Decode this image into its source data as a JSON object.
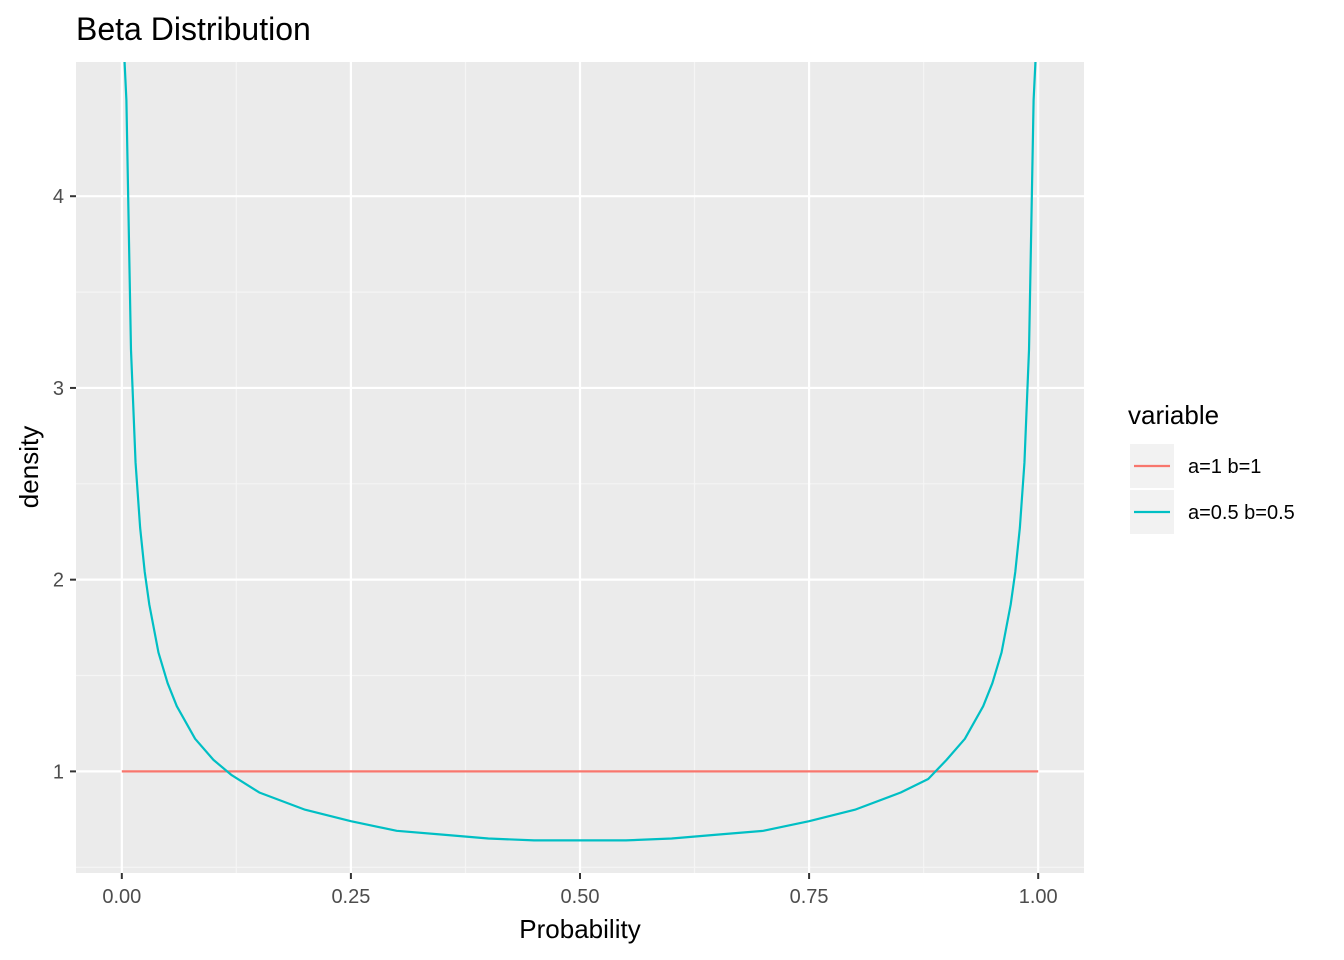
{
  "chart_data": {
    "type": "line",
    "title": "Beta Distribution",
    "xlabel": "Probability",
    "ylabel": "density",
    "xlim": [
      -0.05,
      1.05
    ],
    "ylim": [
      0.47,
      4.7
    ],
    "x_ticks": [
      {
        "value": 0,
        "label": "0.00"
      },
      {
        "value": 0.25,
        "label": "0.25"
      },
      {
        "value": 0.5,
        "label": "0.50"
      },
      {
        "value": 0.75,
        "label": "0.75"
      },
      {
        "value": 1,
        "label": "1.00"
      }
    ],
    "y_ticks": [
      {
        "value": 1,
        "label": "1"
      },
      {
        "value": 2,
        "label": "2"
      },
      {
        "value": 3,
        "label": "3"
      },
      {
        "value": 4,
        "label": "4"
      }
    ],
    "grid": true,
    "legend": {
      "title": "variable",
      "placement": "right"
    },
    "series": [
      {
        "name": "a=1 b=1",
        "color": "#F8766D",
        "x": [
          0,
          0.01,
          0.05,
          0.1,
          0.2,
          0.3,
          0.4,
          0.5,
          0.6,
          0.7,
          0.8,
          0.9,
          0.95,
          0.99,
          1
        ],
        "values": [
          1,
          1,
          1,
          1,
          1,
          1,
          1,
          1,
          1,
          1,
          1,
          1,
          1,
          1,
          1
        ]
      },
      {
        "name": "a=0.5 b=0.5",
        "color": "#00BFC4",
        "x": [
          0.0,
          0.005,
          0.01,
          0.015,
          0.02,
          0.025,
          0.03,
          0.04,
          0.05,
          0.06,
          0.08,
          0.1,
          0.12,
          0.15,
          0.2,
          0.25,
          0.3,
          0.35,
          0.4,
          0.45,
          0.5,
          0.55,
          0.6,
          0.65,
          0.7,
          0.75,
          0.8,
          0.85,
          0.88,
          0.9,
          0.92,
          0.94,
          0.95,
          0.96,
          0.97,
          0.975,
          0.98,
          0.985,
          0.99,
          0.995,
          1.0
        ],
        "values": [
          5.0,
          4.5,
          3.2,
          2.61,
          2.27,
          2.04,
          1.87,
          1.62,
          1.46,
          1.34,
          1.17,
          1.06,
          0.98,
          0.89,
          0.8,
          0.74,
          0.69,
          0.67,
          0.65,
          0.64,
          0.64,
          0.64,
          0.65,
          0.67,
          0.69,
          0.74,
          0.8,
          0.89,
          0.96,
          1.06,
          1.17,
          1.34,
          1.46,
          1.62,
          1.87,
          2.04,
          2.27,
          2.61,
          3.2,
          4.5,
          5.0
        ]
      }
    ]
  }
}
